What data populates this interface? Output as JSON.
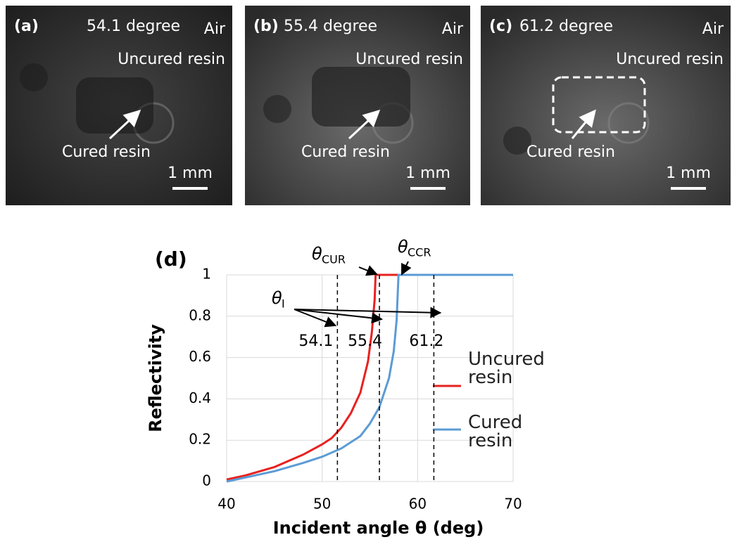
{
  "panels": [
    {
      "label": "(a)",
      "angle": "54.1 degree",
      "air": "Air",
      "uncured": "Uncured resin",
      "cured": "Cured resin",
      "scale": "1 mm"
    },
    {
      "label": "(b)",
      "angle": "55.4 degree",
      "air": "Air",
      "uncured": "Uncured resin",
      "cured": "Cured resin",
      "scale": "1 mm"
    },
    {
      "label": "(c)",
      "angle": "61.2 degree",
      "air": "Air",
      "uncured": "Uncured resin",
      "cured": "Cured resin",
      "scale": "1 mm"
    }
  ],
  "chart_data": {
    "type": "line",
    "title": "(d)",
    "ylabel": "Reflectivity",
    "xlabel": "Incident angle θ (deg)",
    "xlim": [
      40,
      70
    ],
    "ylim": [
      0,
      1
    ],
    "xticks": [
      40,
      50,
      60,
      70
    ],
    "yticks": [
      0,
      0.2,
      0.4,
      0.6,
      0.8,
      1
    ],
    "grid": true,
    "series": [
      {
        "name": "Uncured resin",
        "color": "#e8211f",
        "x": [
          40,
          42,
          45,
          48,
          50,
          51,
          52,
          53,
          54,
          54.8,
          55.2,
          55.5,
          55.6,
          58
        ],
        "values": [
          0.01,
          0.03,
          0.07,
          0.13,
          0.18,
          0.21,
          0.26,
          0.33,
          0.43,
          0.58,
          0.72,
          0.88,
          1,
          1
        ]
      },
      {
        "name": "Cured resin",
        "color": "#5b9bd5",
        "x": [
          40,
          42,
          45,
          48,
          50,
          52,
          54,
          55,
          56,
          57,
          57.5,
          57.8,
          58,
          70
        ],
        "values": [
          0,
          0.02,
          0.05,
          0.09,
          0.12,
          0.16,
          0.22,
          0.28,
          0.36,
          0.5,
          0.63,
          0.78,
          1,
          1
        ]
      }
    ],
    "markers": [
      {
        "x": 51.6,
        "label": "54.1"
      },
      {
        "x": 56,
        "label": "55.4"
      },
      {
        "x": 61.7,
        "label": "61.2"
      }
    ],
    "annotations": {
      "incident": {
        "symbol": "θ",
        "sub": "I"
      },
      "uncured_critical": {
        "symbol": "θ",
        "sub": "CUR"
      },
      "cured_critical": {
        "symbol": "θ",
        "sub": "CCR"
      }
    }
  }
}
